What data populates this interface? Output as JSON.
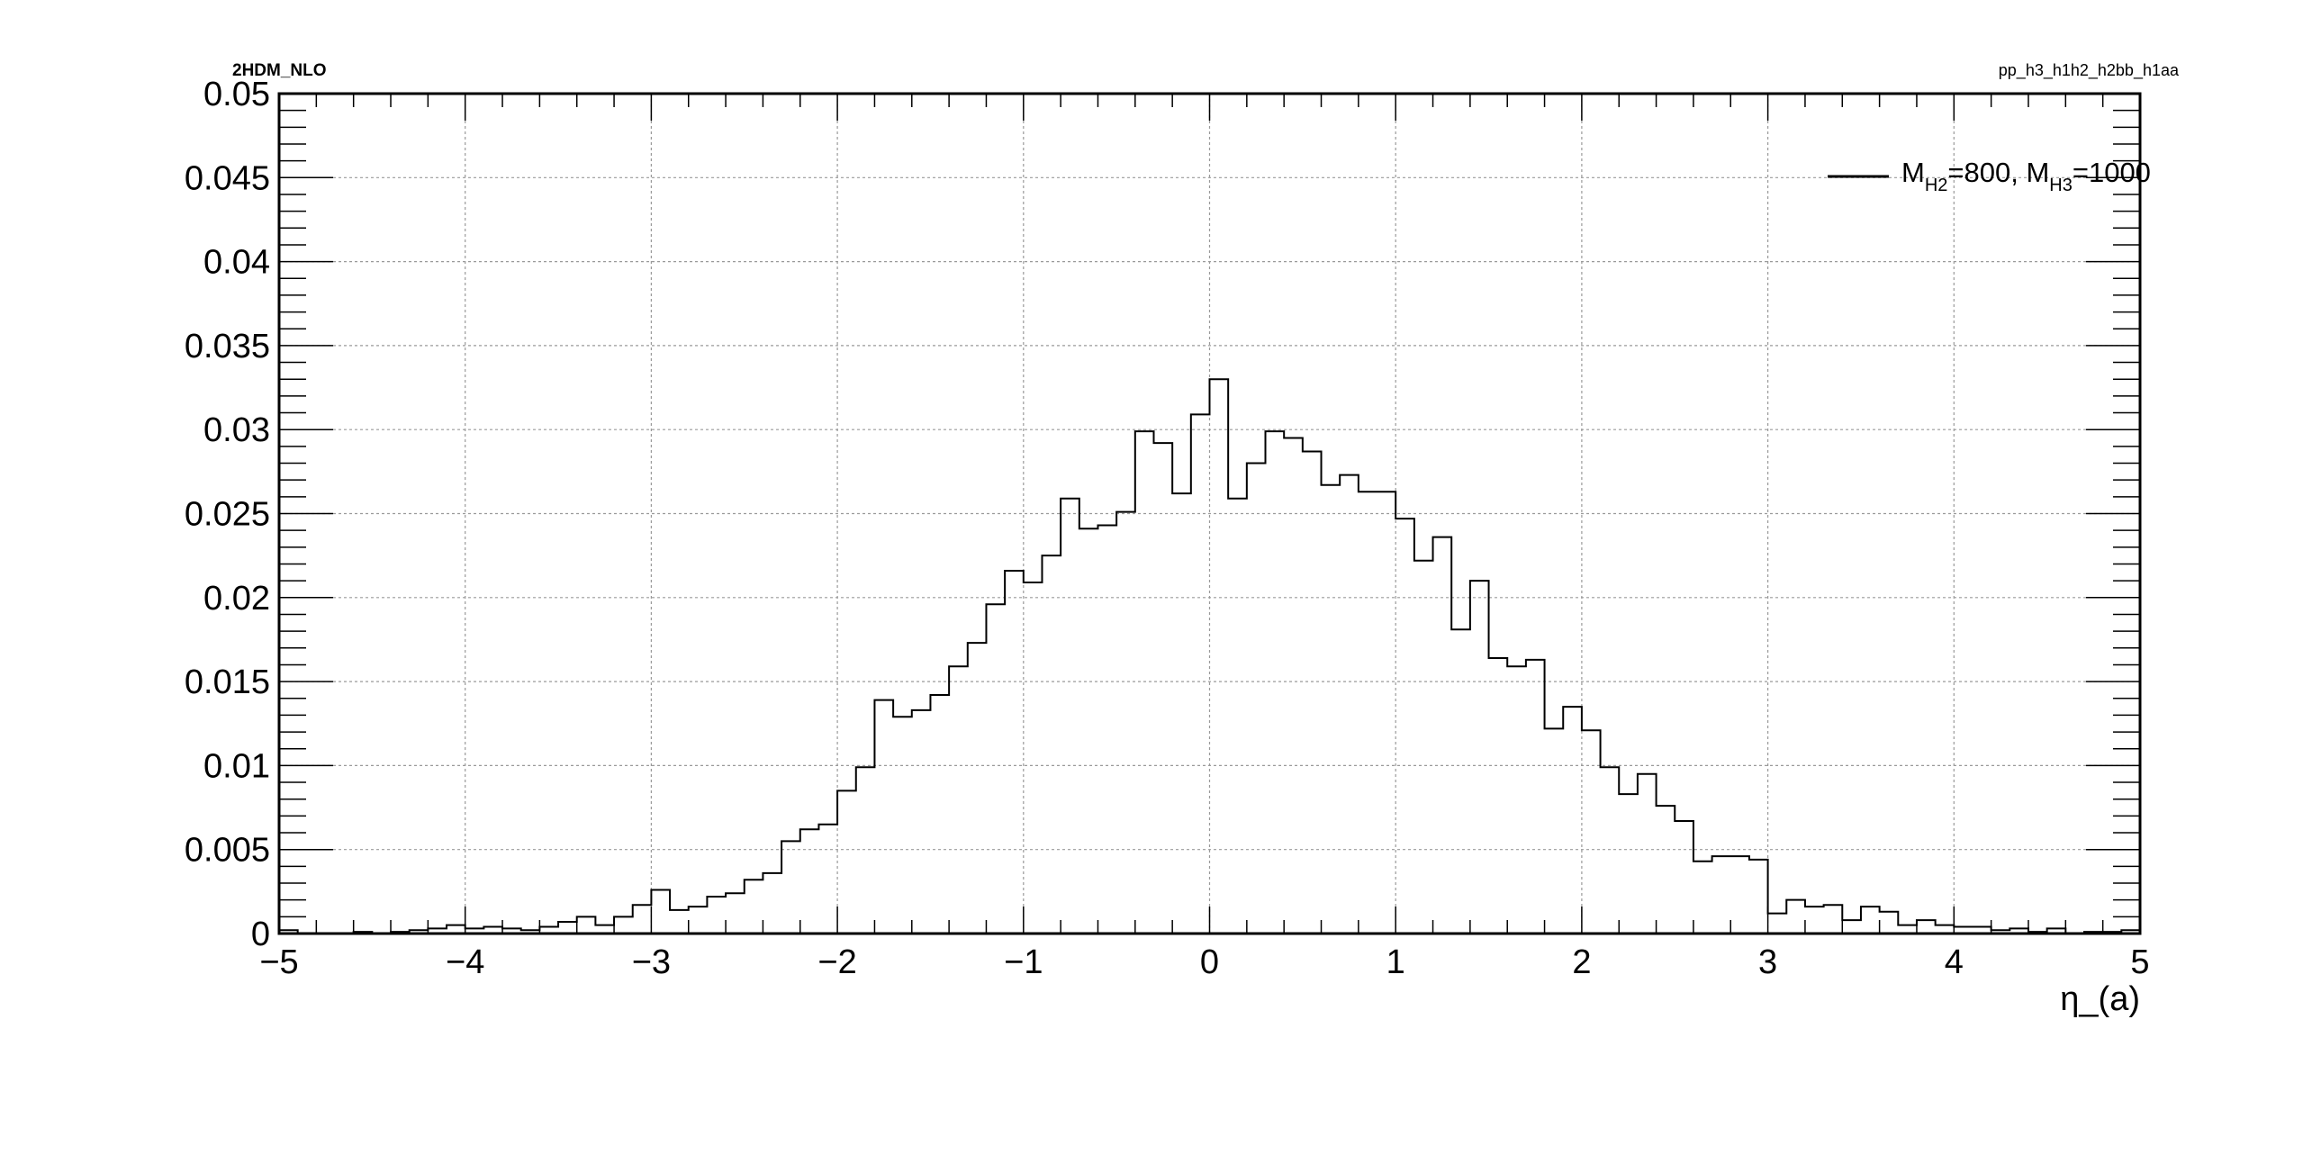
{
  "header": {
    "left_label": "2HDM_NLO",
    "right_label": "pp_h3_h1h2_h2bb_h1aa"
  },
  "legend": {
    "placement": "top-right",
    "parts": [
      "M",
      "H2",
      "=800, M",
      "H3",
      "=1000"
    ]
  },
  "chart_data": {
    "type": "histogram",
    "xlabel": "η_(a)",
    "ylabel": "",
    "xlim": [
      -5,
      5
    ],
    "ylim": [
      0,
      0.05
    ],
    "grid": true,
    "line_color": "#000000",
    "x_ticks": [
      -5,
      -4,
      -3,
      -2,
      -1,
      0,
      1,
      2,
      3,
      4,
      5
    ],
    "x_tick_labels": [
      "−5",
      "−4",
      "−3",
      "−2",
      "−1",
      "0",
      "1",
      "2",
      "3",
      "4",
      "5"
    ],
    "y_ticks": [
      0,
      0.005,
      0.01,
      0.015,
      0.02,
      0.025,
      0.03,
      0.035,
      0.04,
      0.045,
      0.05
    ],
    "y_tick_labels": [
      "0",
      "0.005",
      "0.01",
      "0.015",
      "0.02",
      "0.025",
      "0.03",
      "0.035",
      "0.04",
      "0.045",
      "0.05"
    ],
    "bin_edges_start": -5,
    "bin_width": 0.1,
    "values": [
      0.0002,
      0.0,
      0.0,
      0.0,
      0.0001,
      0.0,
      0.0001,
      0.0002,
      0.0003,
      0.0005,
      0.0003,
      0.0004,
      0.0003,
      0.0002,
      0.0004,
      0.0007,
      0.001,
      0.0005,
      0.001,
      0.0017,
      0.0026,
      0.0014,
      0.0016,
      0.0022,
      0.0024,
      0.0032,
      0.0036,
      0.0055,
      0.0062,
      0.0065,
      0.0085,
      0.0099,
      0.0139,
      0.0129,
      0.0133,
      0.0142,
      0.0159,
      0.0173,
      0.0196,
      0.0216,
      0.0209,
      0.0225,
      0.0259,
      0.0241,
      0.0243,
      0.0251,
      0.0299,
      0.0292,
      0.0262,
      0.0309,
      0.033,
      0.0259,
      0.028,
      0.0299,
      0.0295,
      0.0287,
      0.0267,
      0.0273,
      0.0263,
      0.0263,
      0.0247,
      0.0222,
      0.0236,
      0.0181,
      0.021,
      0.0164,
      0.0159,
      0.0163,
      0.0122,
      0.0135,
      0.0121,
      0.0099,
      0.0083,
      0.0095,
      0.0076,
      0.0067,
      0.0043,
      0.0046,
      0.0046,
      0.0044,
      0.0012,
      0.002,
      0.0016,
      0.0017,
      0.0008,
      0.0016,
      0.0013,
      0.0005,
      0.0008,
      0.0005,
      0.0004,
      0.0004,
      0.0002,
      0.0003,
      0.0001,
      0.0003,
      0.0,
      0.0001,
      0.0001,
      0.0002
    ]
  }
}
